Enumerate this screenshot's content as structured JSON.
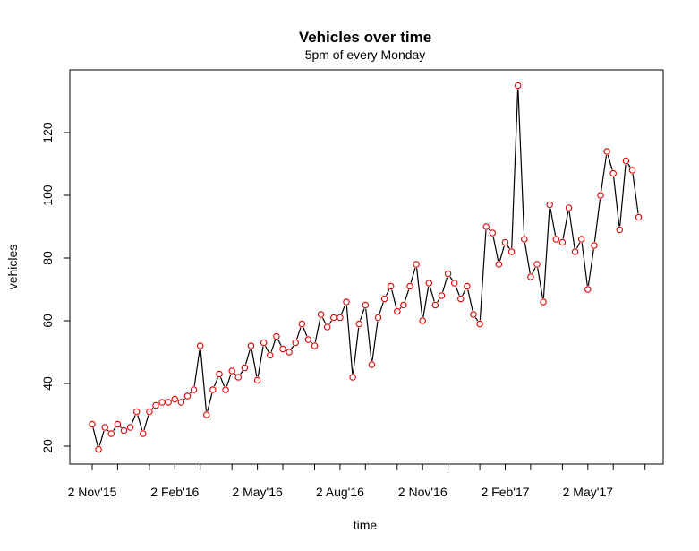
{
  "chart_data": {
    "type": "line",
    "title": "Vehicles over time",
    "subtitle": "5pm of every Monday",
    "xlabel": "time",
    "ylabel": "vehicles",
    "x_start": "2 Nov'15",
    "x_interval": "weekly",
    "x_ticks": [
      "2 Nov'15",
      "2 Feb'16",
      "2 May'16",
      "2 Aug'16",
      "2 Nov'16",
      "2 Feb'17",
      "2 May'17"
    ],
    "y_ticks": [
      20,
      40,
      60,
      80,
      100,
      120
    ],
    "ylim": [
      20,
      135
    ],
    "series": [
      {
        "name": "vehicles",
        "line_color": "#000000",
        "point_color": "#e00000",
        "values": [
          27,
          19,
          26,
          24,
          27,
          25,
          26,
          31,
          24,
          31,
          33,
          34,
          34,
          35,
          34,
          36,
          38,
          52,
          30,
          38,
          43,
          38,
          44,
          42,
          45,
          52,
          41,
          53,
          49,
          55,
          51,
          50,
          53,
          59,
          54,
          52,
          62,
          58,
          61,
          61,
          66,
          42,
          59,
          65,
          46,
          61,
          67,
          71,
          63,
          65,
          71,
          78,
          60,
          72,
          65,
          68,
          75,
          72,
          67,
          71,
          62,
          59,
          90,
          88,
          78,
          85,
          82,
          135,
          86,
          74,
          78,
          66,
          97,
          86,
          85,
          96,
          82,
          86,
          70,
          84,
          100,
          114,
          107,
          89,
          111,
          108,
          93
        ]
      }
    ]
  }
}
